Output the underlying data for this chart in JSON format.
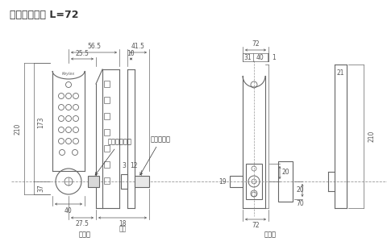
{
  "title": "デッドボルト L=72",
  "title_fontsize": 9,
  "label_fontsize": 6,
  "dim_fontsize": 5.5,
  "background_color": "#ffffff",
  "line_color": "#666666",
  "dim_color": "#555555",
  "text_color": "#333333",
  "outside_label": "室外側",
  "inside_label": "室内側",
  "lock_turn_label": "ロックターン",
  "sam_turn_label": "サムターン",
  "door_thick_label": "扉厚",
  "dims": {
    "d56": "56.5",
    "d25": "25.5",
    "d41": "41.5",
    "d10": "10",
    "d210": "210",
    "d173": "173",
    "d37": "37",
    "d40": "40",
    "d275": "27.5",
    "d18": "18",
    "d3": "3",
    "d12": "12",
    "d72top": "72",
    "d31": "31",
    "d40r": "40",
    "d1": "1",
    "d72bot": "72",
    "d20top": "20",
    "d20bot": "20",
    "d70": "70",
    "d19": "19",
    "d21": "21",
    "d210r": "210"
  }
}
